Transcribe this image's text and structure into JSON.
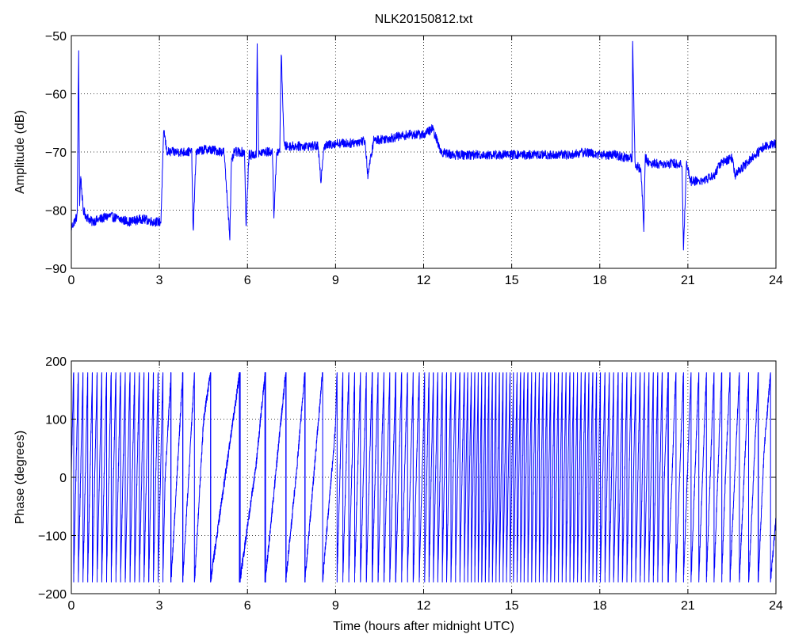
{
  "figure": {
    "background": "#ffffff",
    "line_color": "#0000ff"
  },
  "chart_data": [
    {
      "type": "line",
      "title": "NLK20150812.txt",
      "xlabel": "",
      "ylabel": "Amplitude (dB)",
      "xlim": [
        0,
        24
      ],
      "ylim": [
        -90,
        -50
      ],
      "xticks": [
        0,
        3,
        6,
        9,
        12,
        15,
        18,
        21,
        24
      ],
      "yticks": [
        -90,
        -80,
        -70,
        -60,
        -50
      ],
      "xtick_labels": [
        "0",
        "3",
        "6",
        "9",
        "12",
        "15",
        "18",
        "21",
        "24"
      ],
      "ytick_labels": [
        "−90",
        "−80",
        "−70",
        "−60",
        "−50"
      ],
      "grid": true,
      "series": [
        {
          "color": "#0000ff",
          "x": [
            0,
            0.1,
            0.2,
            0.25,
            0.28,
            0.32,
            0.4,
            0.5,
            0.7,
            1.0,
            1.3,
            1.6,
            2.0,
            2.4,
            2.8,
            3.05,
            3.15,
            3.25,
            3.4,
            3.8,
            4.1,
            4.15,
            4.25,
            4.6,
            5.2,
            5.4,
            5.45,
            5.55,
            5.9,
            5.95,
            6.05,
            6.3,
            6.33,
            6.38,
            6.5,
            6.85,
            6.9,
            7.0,
            7.1,
            7.15,
            7.25,
            7.5,
            8.0,
            8.4,
            8.5,
            8.6,
            9.0,
            9.5,
            10.0,
            10.1,
            10.3,
            11.0,
            11.5,
            12.0,
            12.3,
            12.6,
            13.0,
            14.0,
            15.0,
            16.0,
            17.0,
            17.5,
            18.0,
            18.5,
            18.9,
            19.1,
            19.12,
            19.2,
            19.4,
            19.5,
            19.55,
            19.7,
            20.0,
            20.5,
            20.8,
            20.85,
            20.95,
            21.1,
            21.5,
            21.9,
            22.1,
            22.5,
            22.6,
            22.8,
            23.2,
            23.6,
            24.0
          ],
          "y": [
            -83,
            -82,
            -81,
            -52.5,
            -79,
            -74,
            -80,
            -81,
            -82,
            -81.5,
            -81,
            -81.5,
            -82,
            -81.5,
            -82,
            -82,
            -66,
            -70,
            -70,
            -70,
            -70,
            -84,
            -70,
            -69.5,
            -70,
            -84.5,
            -72,
            -70,
            -70,
            -83,
            -70.5,
            -70.5,
            -51.5,
            -70.5,
            -70,
            -70,
            -81,
            -70,
            -69.5,
            -53,
            -69,
            -69,
            -69,
            -69,
            -75,
            -69,
            -68.5,
            -68.5,
            -68,
            -74,
            -68,
            -67.5,
            -67,
            -67,
            -66,
            -70,
            -70.5,
            -70.5,
            -70.5,
            -70.5,
            -70.5,
            -70,
            -70.5,
            -70.5,
            -71,
            -71,
            -51,
            -72,
            -73,
            -83,
            -71,
            -72,
            -72,
            -72,
            -72,
            -87,
            -72,
            -75,
            -75,
            -74,
            -72,
            -71,
            -74,
            -73,
            -71,
            -69,
            -68.5
          ]
        }
      ]
    },
    {
      "type": "line",
      "title": "",
      "xlabel": "Time (hours after midnight UTC)",
      "ylabel": "Phase (degrees)",
      "xlim": [
        0,
        24
      ],
      "ylim": [
        -200,
        200
      ],
      "xticks": [
        0,
        3,
        6,
        9,
        12,
        15,
        18,
        21,
        24
      ],
      "yticks": [
        -200,
        -100,
        0,
        100,
        200
      ],
      "xtick_labels": [
        "0",
        "3",
        "6",
        "9",
        "12",
        "15",
        "18",
        "21",
        "24"
      ],
      "ytick_labels": [
        "−200",
        "−100",
        "0",
        "100",
        "200"
      ],
      "grid": true,
      "series": [
        {
          "color": "#0000ff",
          "wrapped_phase": true,
          "segments": [
            [
              0,
              3.2,
              0.16
            ],
            [
              3.2,
              4.5,
              0.4
            ],
            [
              4.5,
              6.3,
              1.0
            ],
            [
              6.3,
              7.7,
              0.7
            ],
            [
              7.7,
              9.0,
              0.6
            ],
            [
              9.0,
              12.0,
              0.2
            ],
            [
              12.0,
              13.4,
              0.15
            ],
            [
              13.4,
              15.4,
              0.12
            ],
            [
              15.4,
              18.0,
              0.13
            ],
            [
              18.0,
              20.2,
              0.15
            ],
            [
              20.2,
              22.3,
              0.26
            ],
            [
              22.3,
              23.6,
              0.32
            ],
            [
              23.6,
              24.0,
              0.6
            ]
          ],
          "start_phase": 0
        }
      ]
    }
  ]
}
